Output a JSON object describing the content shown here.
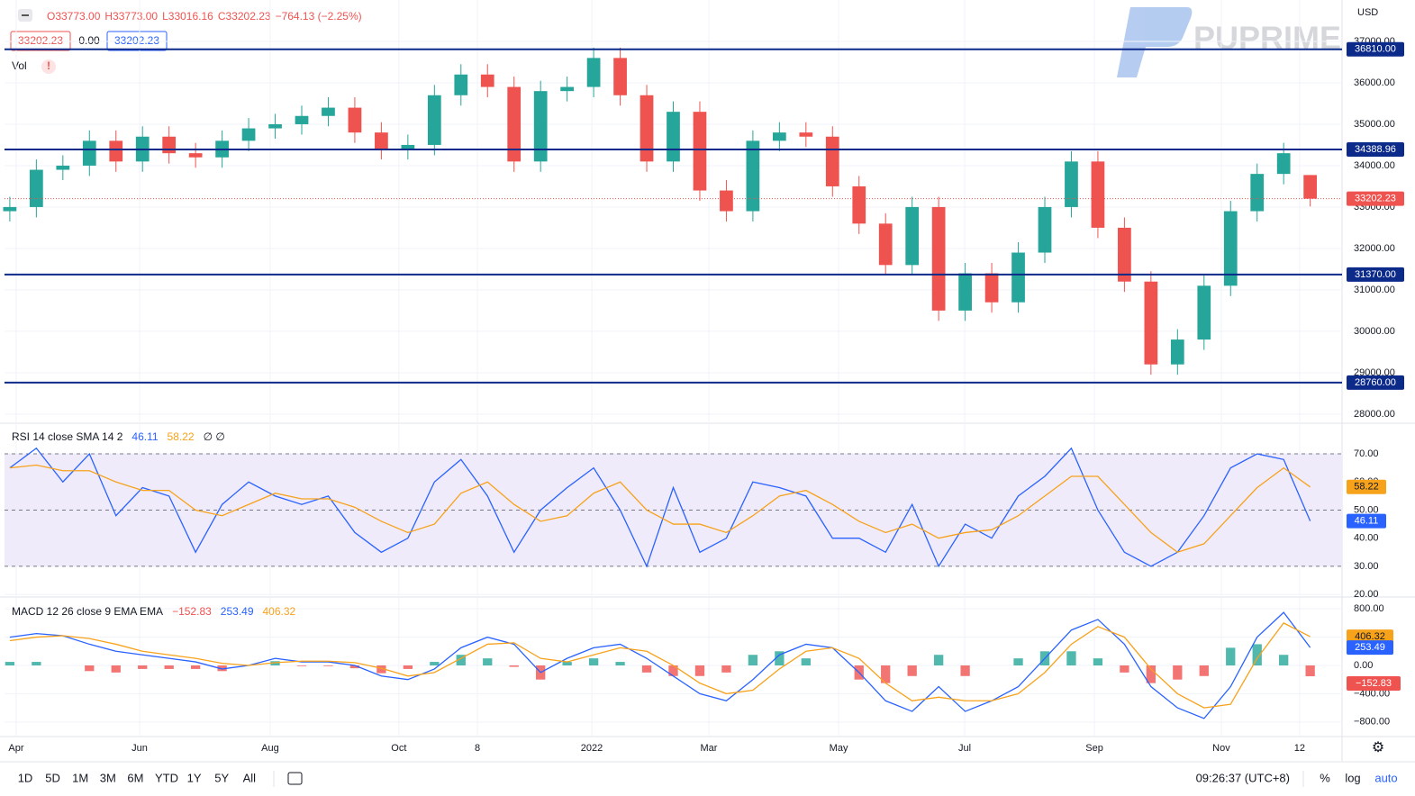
{
  "header": {
    "ohlc": [
      "O33773.00",
      "H33773.00",
      "L33016.16",
      "C33202.23"
    ],
    "change": "−764.13 (−2.25%)",
    "price_boxes": [
      "33202.23",
      "0.00",
      "33202.23"
    ],
    "vol": "Vol",
    "currency": "USD",
    "watermark": "PUPRIME"
  },
  "toolbar": {
    "ranges": [
      "1D",
      "5D",
      "1M",
      "3M",
      "6M",
      "YTD",
      "1Y",
      "5Y",
      "All"
    ],
    "time": "09:26:37 (UTC+8)",
    "options": [
      "%",
      "log",
      "auto"
    ]
  },
  "chart_data": [
    {
      "type": "candlestick",
      "up_color": "#26a69a",
      "down_color": "#ef5350",
      "open": [
        32900,
        33000,
        33900,
        34000,
        34600,
        34100,
        34700,
        34300,
        34200,
        34600,
        34900,
        35000,
        35200,
        35400,
        34800,
        34400,
        34500,
        35700,
        36200,
        35900,
        34100,
        35800,
        35900,
        36600,
        35700,
        34100,
        35300,
        33400,
        32900,
        34600,
        34800,
        34700,
        33500,
        32600,
        31600,
        33000,
        30500,
        31400,
        30700,
        31900,
        33000,
        34100,
        32500,
        31200,
        29200,
        29800,
        31100,
        32900,
        33800,
        33773
      ],
      "high": [
        33250,
        34150,
        34250,
        34850,
        34850,
        34950,
        34950,
        34550,
        34850,
        35150,
        35250,
        35450,
        35650,
        35650,
        35050,
        34750,
        35950,
        36450,
        36450,
        36150,
        36050,
        36150,
        36850,
        36850,
        35950,
        35550,
        35550,
        33650,
        34850,
        35050,
        35050,
        34950,
        33750,
        32850,
        33250,
        33250,
        31650,
        31650,
        32150,
        33250,
        34350,
        34350,
        32750,
        31450,
        30050,
        31350,
        33150,
        34050,
        34550,
        33773
      ],
      "low": [
        32650,
        32750,
        33650,
        33750,
        33850,
        33850,
        34050,
        33950,
        33950,
        34350,
        34650,
        34750,
        34950,
        34550,
        34150,
        34150,
        34250,
        35450,
        35650,
        33850,
        33850,
        35550,
        35650,
        35450,
        33850,
        33850,
        33150,
        32650,
        32650,
        34350,
        34450,
        33250,
        32350,
        31350,
        31350,
        30250,
        30250,
        30450,
        30450,
        31650,
        32750,
        32250,
        30950,
        28950,
        28950,
        29550,
        30850,
        32650,
        33550,
        33016.16
      ],
      "close": [
        33000,
        33900,
        34000,
        34600,
        34100,
        34700,
        34300,
        34200,
        34600,
        34900,
        35000,
        35200,
        35400,
        34800,
        34400,
        34500,
        35700,
        36200,
        35900,
        34100,
        35800,
        35900,
        36600,
        35700,
        34100,
        35300,
        33400,
        32900,
        34600,
        34800,
        34700,
        33500,
        32600,
        31600,
        33000,
        30500,
        31400,
        30700,
        31900,
        33000,
        34100,
        32500,
        31200,
        29200,
        29800,
        31100,
        32900,
        33800,
        34300,
        33202.23
      ],
      "levels": [
        {
          "value": 36810,
          "label": "36810.00"
        },
        {
          "value": 34388.96,
          "label": "34388.96"
        },
        {
          "value": 31370,
          "label": "31370.00"
        },
        {
          "value": 28760,
          "label": "28760.00"
        }
      ],
      "level_color": "#0c2a8a",
      "xlim": [
        -0.2,
        50.2
      ],
      "xticks": [
        {
          "value": 0.24,
          "label": "Apr"
        },
        {
          "value": 4.89,
          "label": "Jun"
        },
        {
          "value": 9.81,
          "label": "Aug"
        },
        {
          "value": 14.66,
          "label": "Oct"
        },
        {
          "value": 17.62,
          "label": "8"
        },
        {
          "value": 21.93,
          "label": "2022"
        },
        {
          "value": 26.34,
          "label": "Mar"
        },
        {
          "value": 31.23,
          "label": "May"
        },
        {
          "value": 35.98,
          "label": "Jul"
        },
        {
          "value": 40.87,
          "label": "Sep"
        },
        {
          "value": 45.65,
          "label": "Nov"
        },
        {
          "value": 48.6,
          "label": "12"
        }
      ],
      "ylim": [
        27780,
        37130
      ],
      "yticks": [
        {
          "value": 28000,
          "label": "28000.00"
        },
        {
          "value": 29000,
          "label": "29000.00"
        },
        {
          "value": 30000,
          "label": "30000.00"
        },
        {
          "value": 31000,
          "label": "31000.00"
        },
        {
          "value": 32000,
          "label": "32000.00"
        },
        {
          "value": 33000,
          "label": "33000.00"
        },
        {
          "value": 34000,
          "label": "34000.00"
        },
        {
          "value": 35000,
          "label": "35000.00"
        },
        {
          "value": 36000,
          "label": "36000.00"
        },
        {
          "value": 37000,
          "label": "37000.00"
        }
      ],
      "grid": true
    },
    {
      "type": "line",
      "title": "RSI 14 close SMA 14 2",
      "extra": "∅ ∅",
      "band": [
        30,
        70
      ],
      "band_color": "#efebfa",
      "hlines": [
        30,
        50,
        70
      ],
      "series": [
        {
          "color": "#2962ff",
          "values": [
            65,
            72,
            60,
            70,
            48,
            58,
            55,
            35,
            52,
            60,
            55,
            52,
            55,
            42,
            35,
            40,
            60,
            68,
            55,
            35,
            50,
            58,
            65,
            50,
            30,
            58,
            35,
            40,
            60,
            58,
            55,
            40,
            40,
            35,
            52,
            30,
            45,
            40,
            55,
            62,
            72,
            50,
            35,
            30,
            35,
            48,
            65,
            70,
            68,
            46.11
          ]
        },
        {
          "color": "#f7a21b",
          "values": [
            65,
            66,
            64,
            64,
            60,
            57,
            57,
            50,
            48,
            52,
            56,
            54,
            54,
            51,
            46,
            42,
            45,
            56,
            60,
            52,
            46,
            48,
            56,
            60,
            50,
            45,
            45,
            42,
            48,
            55,
            57,
            52,
            46,
            42,
            45,
            40,
            42,
            43,
            48,
            55,
            62,
            62,
            52,
            42,
            35,
            38,
            48,
            58,
            65,
            58.22
          ]
        }
      ],
      "xlim": [
        -0.2,
        50.2
      ],
      "ylim": [
        19.4,
        80.9
      ],
      "yticks": [
        {
          "value": 20,
          "label": "20.00"
        },
        {
          "value": 30,
          "label": "30.00"
        },
        {
          "value": 40,
          "label": "40.00"
        },
        {
          "value": 50,
          "label": "50.00"
        },
        {
          "value": 60,
          "label": "60.00"
        },
        {
          "value": 70,
          "label": "70.00"
        }
      ],
      "grid": true
    },
    {
      "type": "macd",
      "title": "MACD 12 26 close 9 EMA EMA",
      "histogram": {
        "up_color": "#26a69a",
        "down_color": "#ef5350",
        "values": [
          50,
          50,
          0,
          -80,
          -100,
          -50,
          -50,
          -50,
          -80,
          0,
          60,
          -10,
          -10,
          -40,
          -110,
          -50,
          50,
          150,
          100,
          -20,
          -200,
          50,
          100,
          50,
          -100,
          -150,
          -150,
          -100,
          150,
          200,
          100,
          0,
          -200,
          -250,
          -150,
          150,
          -150,
          0,
          100,
          200,
          200,
          100,
          -100,
          -250,
          -200,
          -150,
          250,
          300,
          150,
          -152.83
        ],
        "end_label": "−152.83"
      },
      "series": [
        {
          "color": "#2962ff",
          "values": [
            400,
            450,
            420,
            300,
            200,
            150,
            100,
            50,
            -50,
            0,
            100,
            50,
            50,
            0,
            -150,
            -200,
            -50,
            250,
            400,
            300,
            -100,
            100,
            250,
            300,
            100,
            -150,
            -400,
            -500,
            -200,
            150,
            300,
            250,
            -100,
            -500,
            -650,
            -300,
            -650,
            -500,
            -300,
            100,
            500,
            650,
            300,
            -300,
            -600,
            -750,
            -300,
            400,
            750,
            253.49
          ]
        },
        {
          "color": "#f7a21b",
          "values": [
            350,
            400,
            420,
            380,
            300,
            200,
            150,
            100,
            30,
            0,
            40,
            60,
            60,
            40,
            -40,
            -150,
            -100,
            100,
            300,
            320,
            100,
            50,
            150,
            250,
            200,
            0,
            -250,
            -400,
            -350,
            -50,
            200,
            250,
            100,
            -250,
            -500,
            -450,
            -500,
            -500,
            -400,
            -100,
            300,
            550,
            400,
            -50,
            -400,
            -600,
            -550,
            100,
            600,
            406.32
          ]
        }
      ],
      "xlim": [
        -0.2,
        50.2
      ],
      "ylim": [
        -1006,
        955
      ],
      "yticks": [
        {
          "value": -800,
          "label": "−800.00"
        },
        {
          "value": -400,
          "label": "−400.00"
        },
        {
          "value": 0,
          "label": "0.00"
        },
        {
          "value": 400,
          "label": "400.00"
        },
        {
          "value": 800,
          "label": "800.00"
        }
      ],
      "grid": true
    }
  ]
}
